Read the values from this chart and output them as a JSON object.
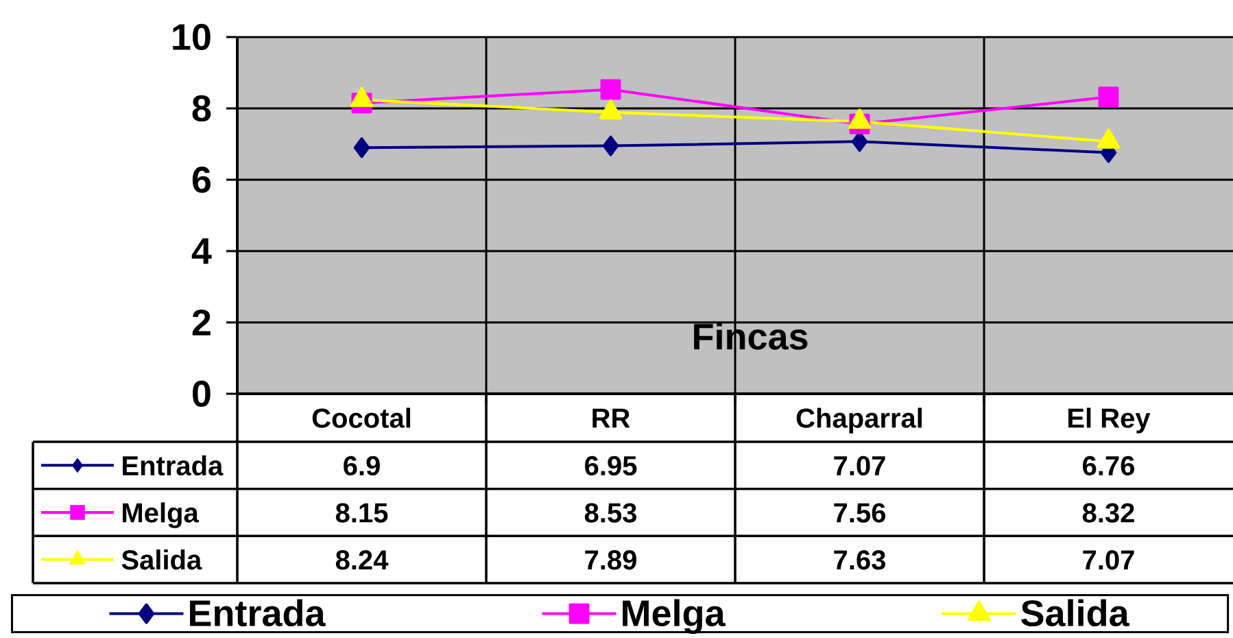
{
  "chart_data": {
    "type": "line",
    "xlabel": "Fincas",
    "categories": [
      "Cocotal",
      "RR",
      "Chaparral",
      "El Rey"
    ],
    "series": [
      {
        "name": "Entrada",
        "color": "#000080",
        "values": [
          6.9,
          6.95,
          7.07,
          6.76
        ],
        "marker": "diamond"
      },
      {
        "name": "Melga",
        "color": "#ff00ff",
        "values": [
          8.15,
          8.53,
          7.56,
          8.32
        ],
        "marker": "square"
      },
      {
        "name": "Salida",
        "color": "#ffff00",
        "values": [
          8.24,
          7.89,
          7.63,
          7.07
        ],
        "marker": "triangle"
      }
    ],
    "ylim": [
      0,
      10
    ],
    "yticks": [
      0,
      2,
      4,
      6,
      8,
      10
    ],
    "grid": true,
    "legend": "bottom",
    "data_labels": true,
    "line_style": "solid"
  }
}
